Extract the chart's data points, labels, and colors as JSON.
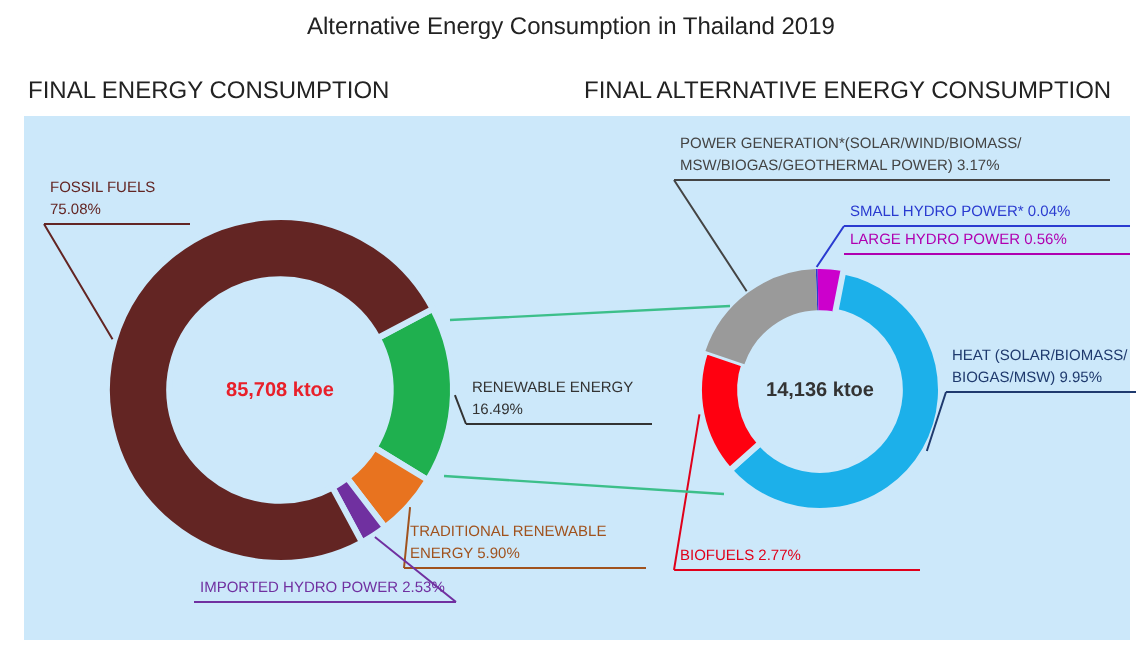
{
  "chart_data": [
    {
      "type": "donut",
      "title": "Alternative Energy Consumption in Thailand 2019",
      "subtitle": "FINAL ENERGY CONSUMPTION",
      "categories": [
        "RENEWABLE ENERGY",
        "TRADITIONAL RENEWABLE ENERGY",
        "IMPORTED HYDRO POWER",
        "FOSSIL FUELS"
      ],
      "values": [
        16.49,
        5.9,
        2.53,
        75.08
      ],
      "colors": [
        "#1fb04f",
        "#e8731f",
        "#7030a0",
        "#632523"
      ],
      "value_labels": [
        "16.49%",
        "5.90%",
        "2.53%",
        "75.08%"
      ],
      "annotations": [
        "85,708 ktoe"
      ]
    },
    {
      "type": "donut",
      "title": "FINAL ALTERNATIVE ENERGY CONSUMPTION",
      "categories": [
        "SMALL HYDRO POWER*",
        "LARGE HYDRO POWER",
        "HEAT (SOLAR/BIOMASS/ BIOGAS/MSW)",
        "BIOFUELS",
        "POWER GENERATION*(SOLAR/WIND/BIOMASS/ MSW/BIOGAS/GEOTHERMAL POWER)"
      ],
      "values": [
        0.04,
        0.56,
        9.95,
        2.77,
        3.17
      ],
      "colors": [
        "#2a3bd0",
        "#cc00cc",
        "#1cb0ea",
        "#ff0010",
        "#9a9a9a"
      ],
      "value_labels": [
        "0.04%",
        "0.56%",
        "9.95%",
        "2.77%",
        "3.17%"
      ],
      "annotations": [
        "14,136 ktoe"
      ]
    }
  ]
}
